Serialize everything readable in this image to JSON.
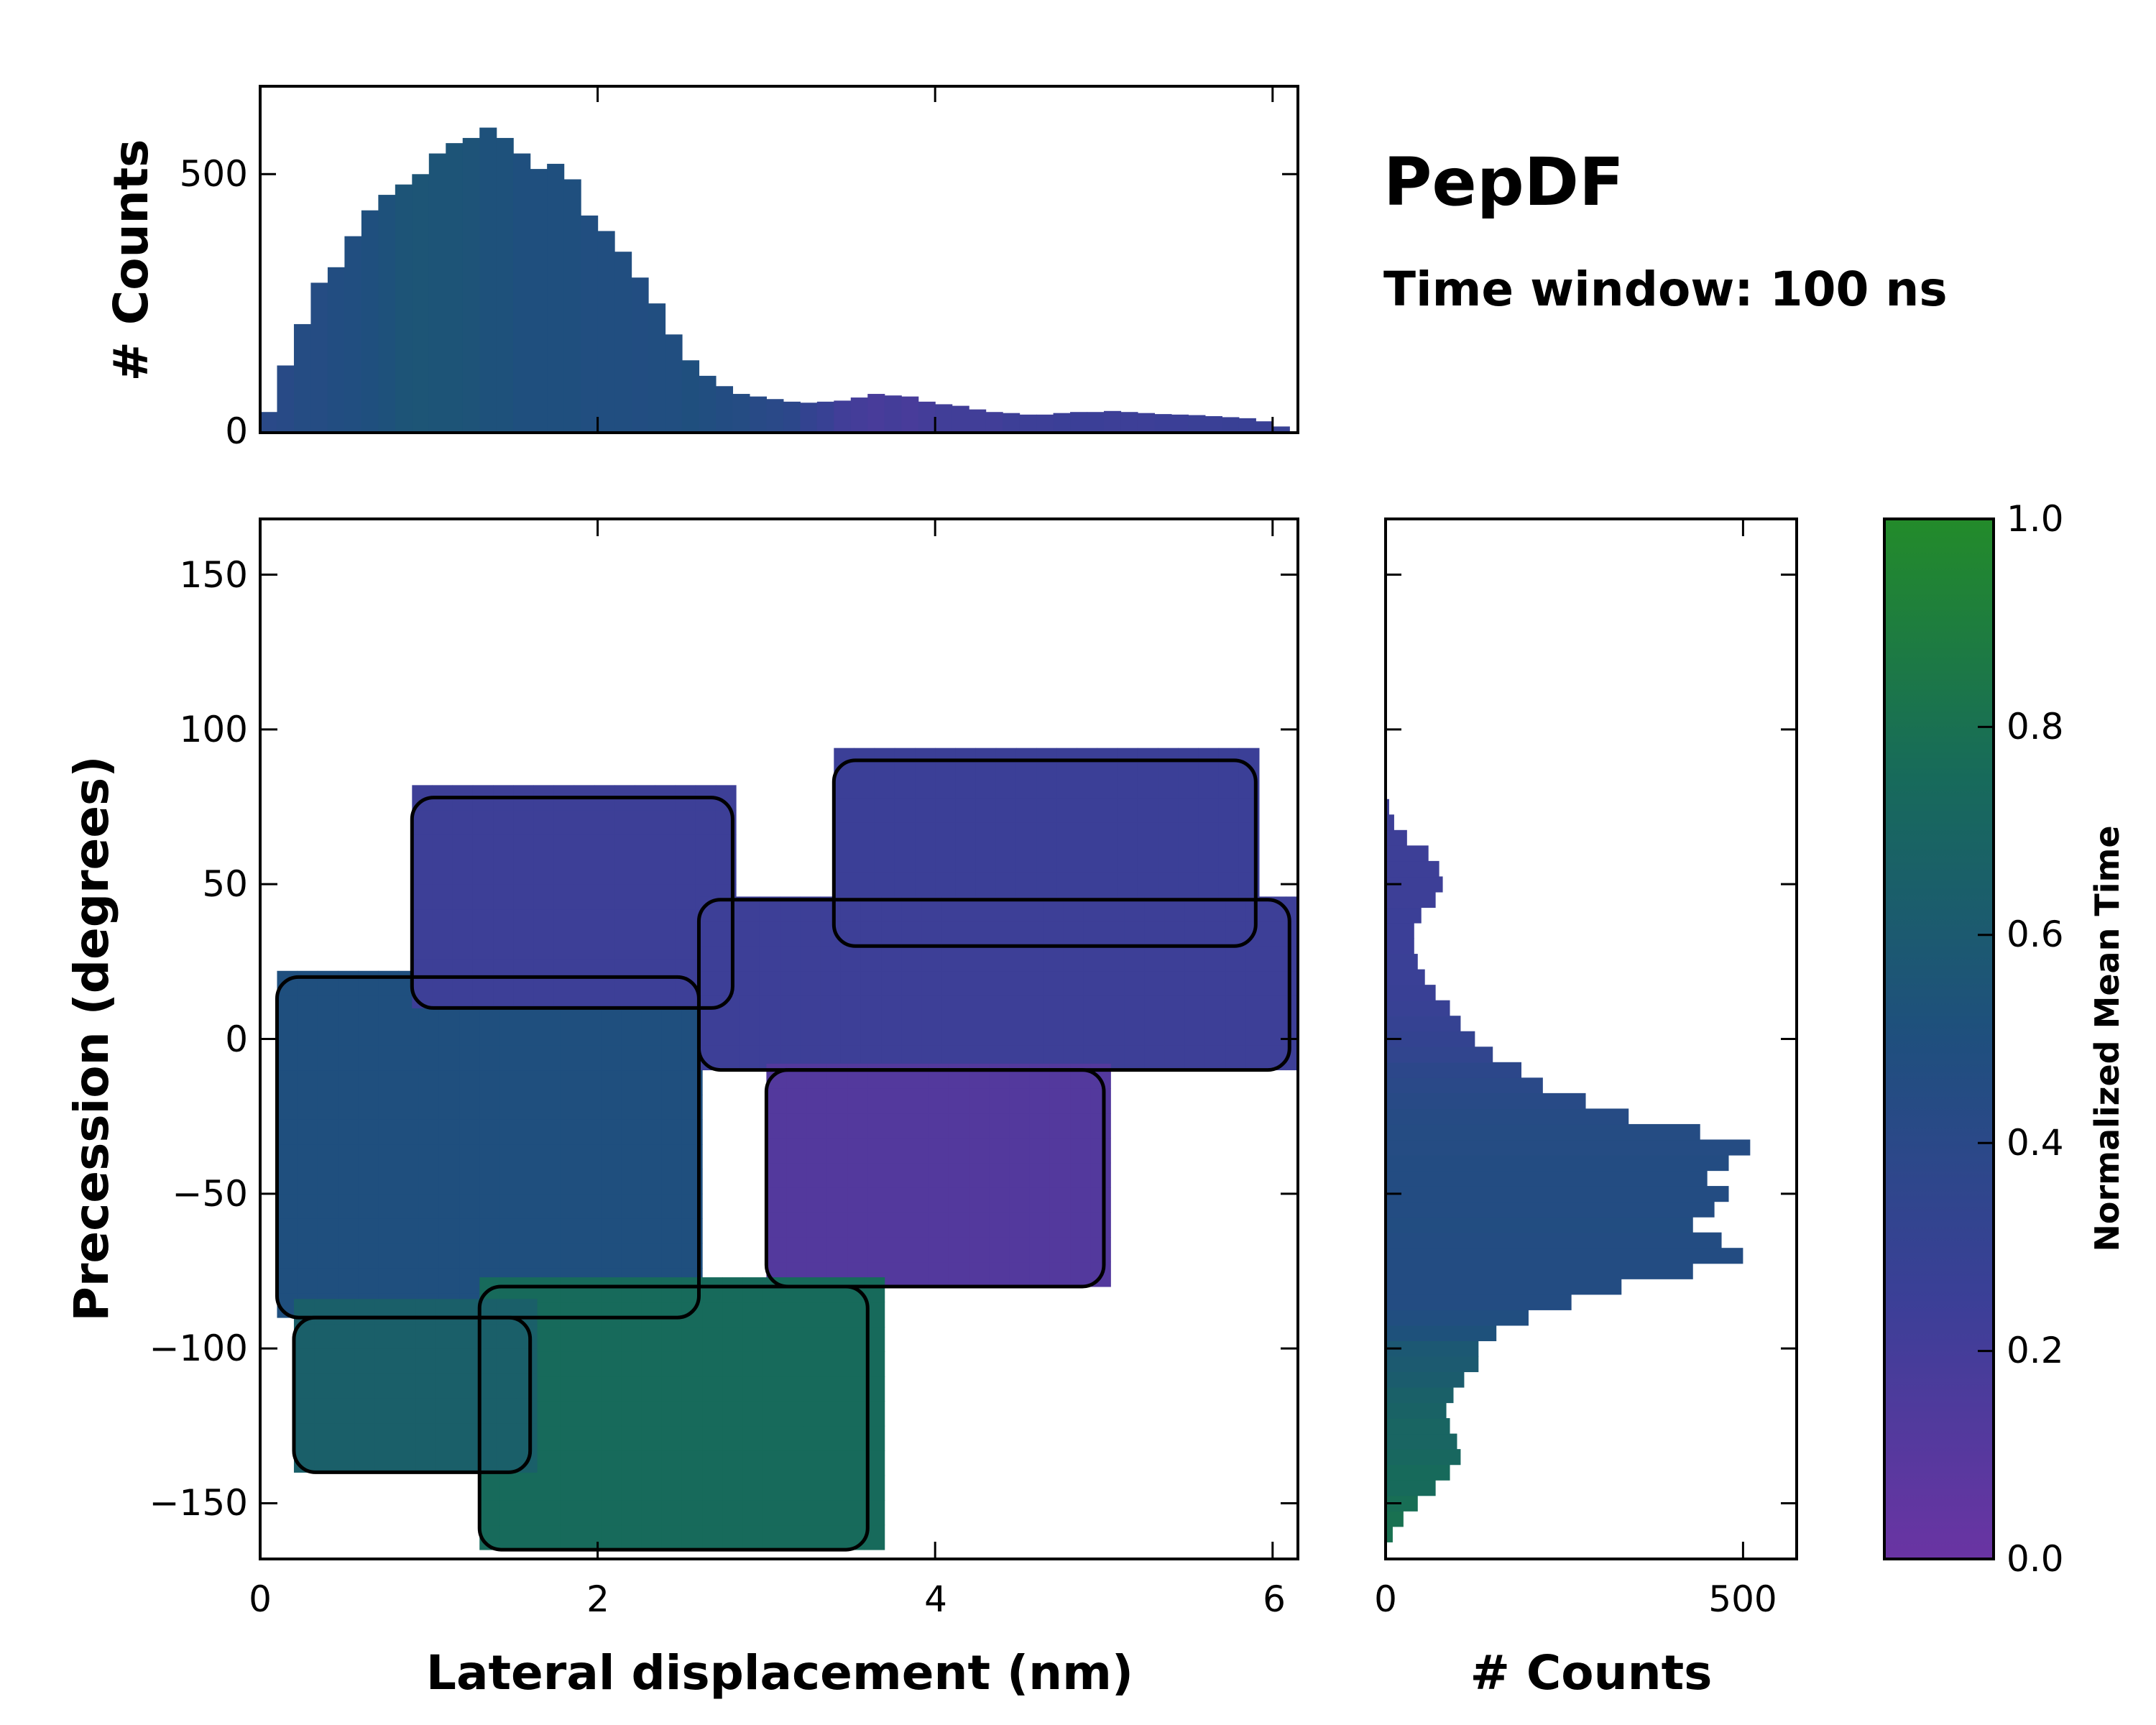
{
  "chart_data": [
    {
      "id": "top-histogram",
      "type": "bar",
      "orientation": "vertical",
      "ylabel": "# Counts",
      "xlim": [
        0,
        6.15
      ],
      "ylim": [
        0,
        670
      ],
      "yticks": [
        0,
        500
      ],
      "xticks": [
        0,
        2,
        4,
        6
      ],
      "x": [
        0.05,
        0.15,
        0.25,
        0.35,
        0.45,
        0.55,
        0.65,
        0.75,
        0.85,
        0.95,
        1.05,
        1.15,
        1.25,
        1.35,
        1.45,
        1.55,
        1.65,
        1.75,
        1.85,
        1.95,
        2.05,
        2.15,
        2.25,
        2.35,
        2.45,
        2.55,
        2.65,
        2.75,
        2.85,
        2.95,
        3.05,
        3.15,
        3.25,
        3.35,
        3.45,
        3.55,
        3.65,
        3.75,
        3.85,
        3.95,
        4.05,
        4.15,
        4.25,
        4.35,
        4.45,
        4.55,
        4.65,
        4.75,
        4.85,
        4.95,
        5.05,
        5.15,
        5.25,
        5.35,
        5.45,
        5.55,
        5.65,
        5.75,
        5.85,
        5.95,
        6.05
      ],
      "values": [
        40,
        130,
        210,
        290,
        320,
        380,
        430,
        460,
        480,
        500,
        540,
        560,
        570,
        590,
        570,
        540,
        510,
        520,
        490,
        420,
        390,
        350,
        300,
        250,
        190,
        140,
        110,
        90,
        75,
        70,
        65,
        60,
        58,
        60,
        62,
        68,
        75,
        72,
        70,
        60,
        55,
        52,
        45,
        40,
        38,
        35,
        35,
        38,
        40,
        40,
        42,
        40,
        38,
        36,
        35,
        34,
        32,
        30,
        28,
        22,
        12
      ],
      "mean_time": [
        0.4,
        0.42,
        0.45,
        0.45,
        0.47,
        0.48,
        0.5,
        0.52,
        0.55,
        0.56,
        0.55,
        0.55,
        0.54,
        0.52,
        0.52,
        0.5,
        0.5,
        0.5,
        0.5,
        0.48,
        0.48,
        0.48,
        0.47,
        0.48,
        0.48,
        0.5,
        0.48,
        0.46,
        0.45,
        0.42,
        0.4,
        0.38,
        0.32,
        0.28,
        0.22,
        0.2,
        0.18,
        0.2,
        0.18,
        0.2,
        0.22,
        0.22,
        0.22,
        0.22,
        0.24,
        0.24,
        0.24,
        0.25,
        0.25,
        0.25,
        0.24,
        0.24,
        0.24,
        0.25,
        0.25,
        0.26,
        0.26,
        0.27,
        0.27,
        0.27,
        0.28
      ]
    },
    {
      "id": "main-heatmap",
      "type": "heatmap",
      "xlabel": "Lateral displacement (nm)",
      "ylabel": "Precession (degrees)",
      "xlim": [
        0,
        6.15
      ],
      "ylim": [
        -168,
        168
      ],
      "xticks": [
        0,
        2,
        4,
        6
      ],
      "yticks": [
        150,
        100,
        50,
        0,
        -50,
        -100,
        -150
      ],
      "color_scale": "Normalized Mean Time (0.0 purple to 1.0 green)",
      "regions": [
        {
          "name": "dense-core",
          "x": [
            0.1,
            2.6
          ],
          "y": [
            -90,
            20
          ],
          "mean_time": 0.5
        },
        {
          "name": "upper-purple",
          "x": [
            0.9,
            2.8
          ],
          "y": [
            10,
            78
          ],
          "mean_time": 0.24
        },
        {
          "name": "right-ridge-upper",
          "x": [
            3.4,
            5.9
          ],
          "y": [
            30,
            90
          ],
          "mean_time": 0.25
        },
        {
          "name": "right-ridge-middle",
          "x": [
            2.6,
            6.1
          ],
          "y": [
            -10,
            45
          ],
          "mean_time": 0.24
        },
        {
          "name": "central-purple",
          "x": [
            3.0,
            5.0
          ],
          "y": [
            -80,
            -10
          ],
          "mean_time": 0.12
        },
        {
          "name": "lower-green",
          "x": [
            1.3,
            3.6
          ],
          "y": [
            -165,
            -80
          ],
          "mean_time": 0.75
        },
        {
          "name": "lower-left-green",
          "x": [
            0.2,
            1.6
          ],
          "y": [
            -140,
            -90
          ],
          "mean_time": 0.65
        }
      ]
    },
    {
      "id": "right-histogram",
      "type": "bar",
      "orientation": "horizontal",
      "xlabel": "# Counts",
      "xlim": [
        0,
        575
      ],
      "xticks": [
        0,
        500
      ],
      "ylim": [
        -168,
        168
      ],
      "y": [
        -160,
        -155,
        -150,
        -145,
        -140,
        -135,
        -130,
        -125,
        -120,
        -115,
        -110,
        -105,
        -100,
        -95,
        -90,
        -85,
        -80,
        -75,
        -70,
        -65,
        -60,
        -55,
        -50,
        -45,
        -40,
        -35,
        -30,
        -25,
        -20,
        -15,
        -10,
        -5,
        0,
        5,
        10,
        15,
        20,
        25,
        30,
        35,
        40,
        45,
        50,
        55,
        60,
        65,
        70,
        75,
        80,
        85,
        90
      ],
      "values": [
        10,
        25,
        45,
        70,
        90,
        105,
        100,
        90,
        85,
        95,
        110,
        130,
        130,
        155,
        200,
        260,
        330,
        430,
        500,
        470,
        430,
        460,
        480,
        450,
        480,
        510,
        440,
        340,
        280,
        220,
        190,
        150,
        125,
        105,
        90,
        70,
        55,
        45,
        40,
        40,
        50,
        70,
        80,
        75,
        60,
        30,
        12,
        5,
        2,
        1,
        0
      ],
      "mean_time": [
        0.8,
        0.8,
        0.78,
        0.75,
        0.75,
        0.72,
        0.7,
        0.7,
        0.68,
        0.66,
        0.62,
        0.6,
        0.58,
        0.52,
        0.48,
        0.46,
        0.46,
        0.46,
        0.46,
        0.46,
        0.47,
        0.46,
        0.46,
        0.46,
        0.46,
        0.45,
        0.45,
        0.44,
        0.42,
        0.4,
        0.38,
        0.34,
        0.32,
        0.3,
        0.28,
        0.27,
        0.26,
        0.26,
        0.25,
        0.25,
        0.25,
        0.24,
        0.24,
        0.24,
        0.24,
        0.24,
        0.24,
        0.24,
        0.24,
        0.24,
        0.24
      ]
    }
  ],
  "annotations": {
    "title": "PepDF",
    "subtitle": "Time window: 100 ns"
  },
  "colorbar": {
    "label": "Normalized Mean Time",
    "ticks": [
      "0.0",
      "0.2",
      "0.4",
      "0.6",
      "0.8",
      "1.0"
    ],
    "colors": {
      "low": "#6a34a3",
      "low_mid": "#3b3f97",
      "mid": "#1f4f7e",
      "high_mid": "#176a5b",
      "high": "#238b2a"
    }
  },
  "labels": {
    "top_ylabel": "# Counts",
    "main_xlabel": "Lateral displacement (nm)",
    "main_ylabel": "Precession (degrees)",
    "right_xlabel": "# Counts"
  },
  "tick_labels": {
    "top_y": [
      "500",
      "0"
    ],
    "main_x": [
      "0",
      "2",
      "4",
      "6"
    ],
    "main_y": [
      "150",
      "100",
      "50",
      "0",
      "−50",
      "−100",
      "−150"
    ],
    "right_x": [
      "0",
      "500"
    ]
  }
}
